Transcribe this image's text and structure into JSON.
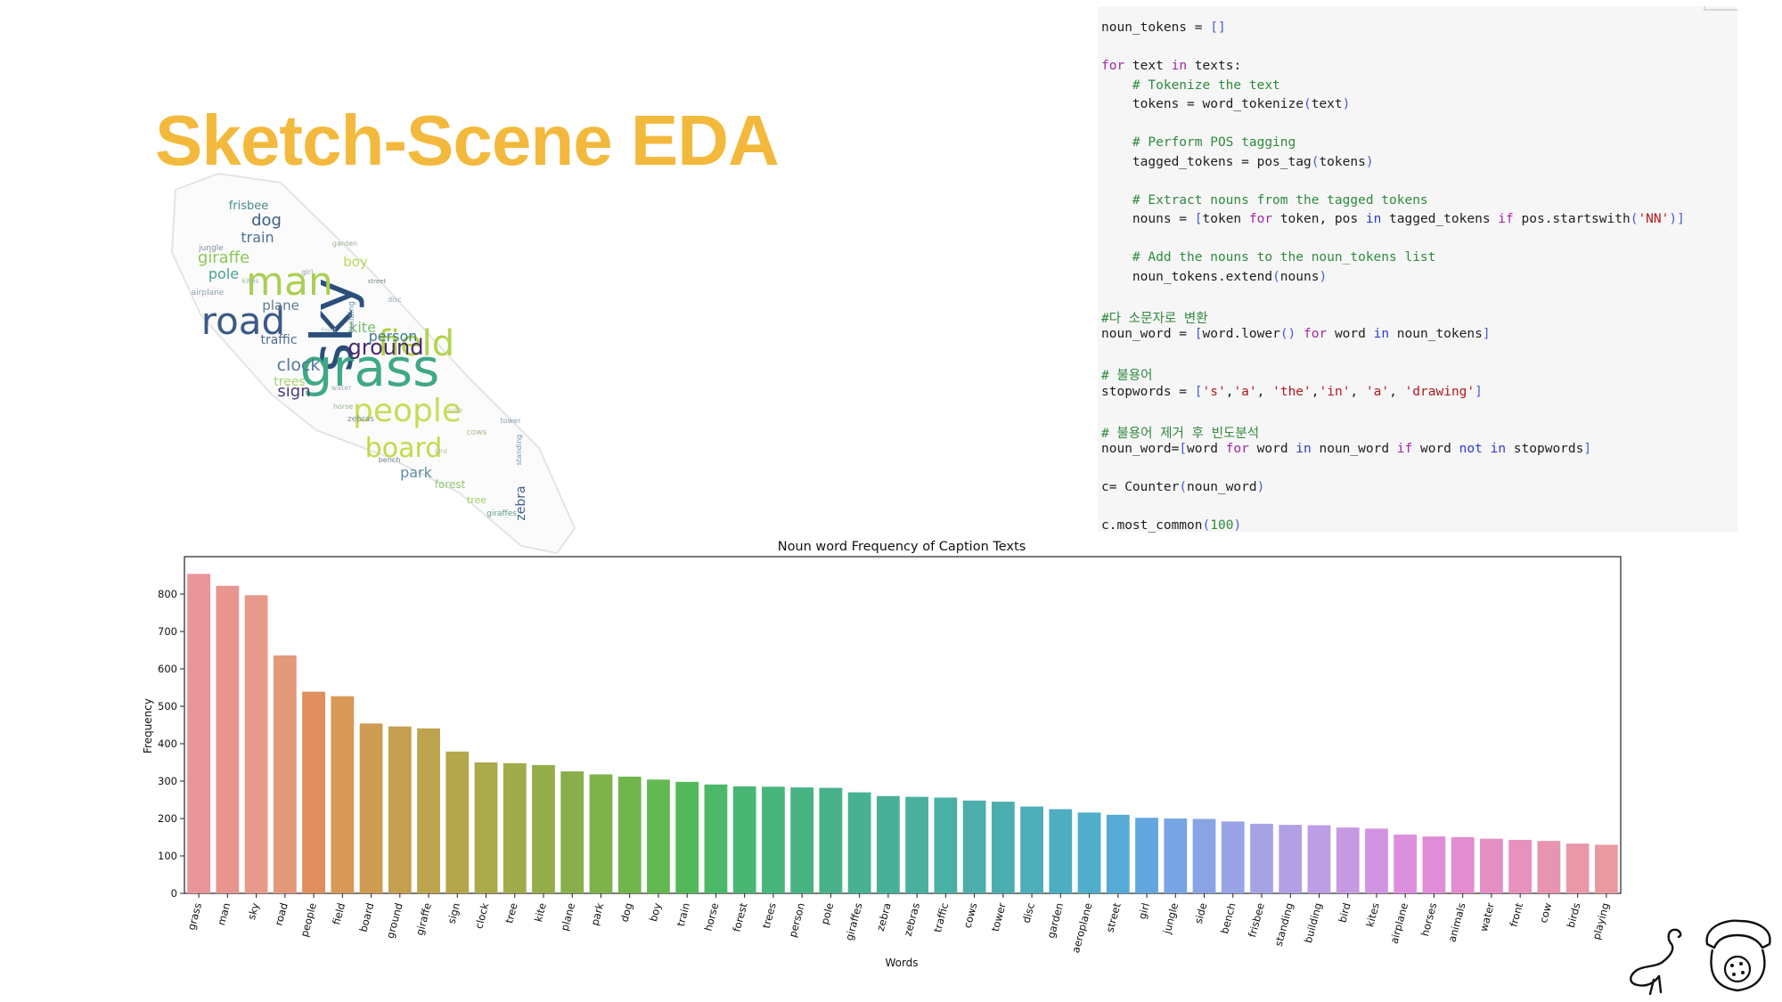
{
  "slide": {
    "title": "Sketch-Scene EDA"
  },
  "code": {
    "lines": [
      [
        {
          "t": "noun_tokens = "
        },
        {
          "t": "[]",
          "c": "pn"
        }
      ],
      [],
      [
        {
          "t": "for",
          "c": "kw"
        },
        {
          "t": " text "
        },
        {
          "t": "in",
          "c": "kw"
        },
        {
          "t": " texts:"
        }
      ],
      [
        {
          "t": "    "
        },
        {
          "t": "# Tokenize the text",
          "c": "cm"
        }
      ],
      [
        {
          "t": "    tokens = word_tokenize"
        },
        {
          "t": "(",
          "c": "pn"
        },
        {
          "t": "text"
        },
        {
          "t": ")",
          "c": "pn"
        }
      ],
      [],
      [
        {
          "t": "    "
        },
        {
          "t": "# Perform POS tagging",
          "c": "cm"
        }
      ],
      [
        {
          "t": "    tagged_tokens = pos_tag"
        },
        {
          "t": "(",
          "c": "pn"
        },
        {
          "t": "tokens"
        },
        {
          "t": ")",
          "c": "pn"
        }
      ],
      [],
      [
        {
          "t": "    "
        },
        {
          "t": "# Extract nouns from the tagged tokens",
          "c": "cm"
        }
      ],
      [
        {
          "t": "    nouns = "
        },
        {
          "t": "[",
          "c": "pn"
        },
        {
          "t": "token "
        },
        {
          "t": "for",
          "c": "kw"
        },
        {
          "t": " token, pos "
        },
        {
          "t": "in",
          "c": "kw2"
        },
        {
          "t": " tagged_tokens "
        },
        {
          "t": "if",
          "c": "kw"
        },
        {
          "t": " pos.startswith"
        },
        {
          "t": "(",
          "c": "pn"
        },
        {
          "t": "'NN'",
          "c": "st"
        },
        {
          "t": ")]",
          "c": "pn"
        }
      ],
      [],
      [
        {
          "t": "    "
        },
        {
          "t": "# Add the nouns to the noun_tokens list",
          "c": "cm"
        }
      ],
      [
        {
          "t": "    noun_tokens.extend"
        },
        {
          "t": "(",
          "c": "pn"
        },
        {
          "t": "nouns"
        },
        {
          "t": ")",
          "c": "pn"
        }
      ],
      [],
      [
        {
          "t": "#다 소문자로 변환",
          "c": "cm"
        }
      ],
      [
        {
          "t": "noun_word = "
        },
        {
          "t": "[",
          "c": "pn"
        },
        {
          "t": "word.lower"
        },
        {
          "t": "()",
          "c": "pn"
        },
        {
          "t": " "
        },
        {
          "t": "for",
          "c": "kw"
        },
        {
          "t": " word "
        },
        {
          "t": "in",
          "c": "kw2"
        },
        {
          "t": " noun_tokens"
        },
        {
          "t": "]",
          "c": "pn"
        }
      ],
      [],
      [
        {
          "t": "# 불용어",
          "c": "cm"
        }
      ],
      [
        {
          "t": "stopwords = "
        },
        {
          "t": "[",
          "c": "pn"
        },
        {
          "t": "'s'",
          "c": "st"
        },
        {
          "t": ","
        },
        {
          "t": "'a'",
          "c": "st"
        },
        {
          "t": ", "
        },
        {
          "t": "'the'",
          "c": "st"
        },
        {
          "t": ","
        },
        {
          "t": "'in'",
          "c": "st"
        },
        {
          "t": ", "
        },
        {
          "t": "'a'",
          "c": "st"
        },
        {
          "t": ", "
        },
        {
          "t": "'drawing'",
          "c": "st"
        },
        {
          "t": "]",
          "c": "pn"
        }
      ],
      [],
      [
        {
          "t": "# 불용어 제거 후 빈도분석",
          "c": "cm"
        }
      ],
      [
        {
          "t": "noun_word="
        },
        {
          "t": "[",
          "c": "pn"
        },
        {
          "t": "word "
        },
        {
          "t": "for",
          "c": "kw"
        },
        {
          "t": " word "
        },
        {
          "t": "in",
          "c": "kw2"
        },
        {
          "t": " noun_word "
        },
        {
          "t": "if",
          "c": "kw"
        },
        {
          "t": " word "
        },
        {
          "t": "not",
          "c": "kw2"
        },
        {
          "t": " "
        },
        {
          "t": "in",
          "c": "kw2"
        },
        {
          "t": " stopwords"
        },
        {
          "t": "]",
          "c": "pn"
        }
      ],
      [],
      [
        {
          "t": "c= Counter"
        },
        {
          "t": "(",
          "c": "pn"
        },
        {
          "t": "noun_word"
        },
        {
          "t": ")",
          "c": "pn"
        }
      ],
      [],
      [
        {
          "t": "c.most_common"
        },
        {
          "t": "(",
          "c": "pn"
        },
        {
          "t": "100",
          "c": "nu"
        },
        {
          "t": ")",
          "c": "pn"
        }
      ]
    ]
  },
  "wordcloud": {
    "words": [
      {
        "w": "sky",
        "c": "#2a4f7a",
        "rot": true
      },
      {
        "w": "grass",
        "c": "#3fa887"
      },
      {
        "w": "man",
        "c": "#a9cf54"
      },
      {
        "w": "road",
        "c": "#3b5a87"
      },
      {
        "w": "field",
        "c": "#b3d34e"
      },
      {
        "w": "people",
        "c": "#c7dc58"
      },
      {
        "w": "board",
        "c": "#c2d94a"
      },
      {
        "w": "ground",
        "c": "#4b2a6e"
      },
      {
        "w": "giraffe",
        "c": "#8dc65a"
      },
      {
        "w": "clock",
        "c": "#4f7a9c"
      },
      {
        "w": "sign",
        "c": "#4a3a78"
      },
      {
        "w": "kite",
        "c": "#78c06e"
      },
      {
        "w": "person",
        "c": "#3d7a96"
      },
      {
        "w": "trees",
        "c": "#a8d46c"
      },
      {
        "w": "plane",
        "c": "#5c7f92"
      },
      {
        "w": "traffic",
        "c": "#4d6e8c"
      },
      {
        "w": "train",
        "c": "#4b7398"
      },
      {
        "w": "pole",
        "c": "#4ca38d"
      },
      {
        "w": "boy",
        "c": "#b9d95a"
      },
      {
        "w": "dog",
        "c": "#3c5f86"
      },
      {
        "w": "frisbee",
        "c": "#4a8c8e"
      },
      {
        "w": "park",
        "c": "#5d8ea0"
      },
      {
        "w": "zebra",
        "c": "#3e5e88",
        "rot": true
      },
      {
        "w": "forest",
        "c": "#8fc978"
      },
      {
        "w": "tree",
        "c": "#a2d060"
      },
      {
        "w": "building",
        "c": "#6d8fa8",
        "rot": true
      },
      {
        "w": "bench",
        "c": "#6b7f94"
      },
      {
        "w": "street",
        "c": "#6a9080"
      },
      {
        "w": "zebras",
        "c": "#7a8da2"
      },
      {
        "w": "giraffes",
        "c": "#5aa088"
      },
      {
        "w": "standing",
        "c": "#7a93a8",
        "rot": true
      },
      {
        "w": "tower",
        "c": "#8aa0b4"
      },
      {
        "w": "jungle",
        "c": "#7d8c9e"
      },
      {
        "w": "airplane",
        "c": "#8aa0a8"
      },
      {
        "w": "horse",
        "c": "#98b07e"
      },
      {
        "w": "girl",
        "c": "#8c9cb0"
      },
      {
        "w": "cows",
        "c": "#a6b888"
      },
      {
        "w": "garden",
        "c": "#9eb08e"
      },
      {
        "w": "disc",
        "c": "#98a8b8"
      },
      {
        "w": "water",
        "c": "#a8b2c0"
      },
      {
        "w": "side",
        "c": "#b8c0a0"
      },
      {
        "w": "kites",
        "c": "#a0b8a8"
      },
      {
        "w": "front",
        "c": "#b0b8c4"
      },
      {
        "w": "bird",
        "c": "#b4c0a0"
      }
    ]
  },
  "chart_data": {
    "type": "bar",
    "title": "Noun word Frequency of Caption Texts",
    "xlabel": "Words",
    "ylabel": "Frequency",
    "ylim": [
      0,
      900
    ],
    "yticks": [
      0,
      100,
      200,
      300,
      400,
      500,
      600,
      700,
      800
    ],
    "grid": false,
    "categories": [
      "grass",
      "man",
      "sky",
      "road",
      "people",
      "field",
      "board",
      "ground",
      "giraffe",
      "sign",
      "clock",
      "tree",
      "kite",
      "plane",
      "park",
      "dog",
      "boy",
      "train",
      "horse",
      "forest",
      "trees",
      "person",
      "pole",
      "giraffes",
      "zebra",
      "zebras",
      "traffic",
      "cows",
      "tower",
      "disc",
      "garden",
      "aeroplane",
      "street",
      "girl",
      "jungle",
      "side",
      "bench",
      "frisbee",
      "standing",
      "building",
      "bird",
      "kites",
      "airplane",
      "horses",
      "animals",
      "water",
      "front",
      "cow",
      "birds",
      "playing"
    ],
    "values": [
      854,
      822,
      797,
      636,
      539,
      527,
      454,
      446,
      441,
      379,
      350,
      348,
      343,
      326,
      318,
      312,
      304,
      298,
      291,
      286,
      285,
      283,
      282,
      270,
      260,
      258,
      256,
      248,
      245,
      232,
      225,
      216,
      210,
      202,
      200,
      199,
      192,
      186,
      183,
      182,
      176,
      173,
      157,
      152,
      150,
      146,
      143,
      140,
      133,
      130
    ],
    "colors": [
      "#e9949b",
      "#e8948f",
      "#e79a8a",
      "#e3987a",
      "#e08e5d",
      "#d89857",
      "#ce9b52",
      "#c49f50",
      "#bea34e",
      "#b3a64c",
      "#aaa94b",
      "#a0ab4a",
      "#94ad49",
      "#88af49",
      "#7db34a",
      "#72b54c",
      "#64b852",
      "#52b95a",
      "#4cb968",
      "#49b773",
      "#48b57c",
      "#47b383",
      "#47b28a",
      "#48b191",
      "#49b098",
      "#4ab09e",
      "#4aafa5",
      "#4baeab",
      "#4cadb1",
      "#4daeb9",
      "#4eaec1",
      "#50adca",
      "#55abd6",
      "#62a7df",
      "#77a4e2",
      "#89a4e3",
      "#98a4e5",
      "#a6a3e5",
      "#b2a0e4",
      "#bd9de3",
      "#c799e2",
      "#d194e0",
      "#dc8fdd",
      "#e18cd7",
      "#e38ccf",
      "#e48fc4",
      "#e592bc",
      "#e694b2",
      "#e898a8",
      "#e99aa0"
    ]
  }
}
